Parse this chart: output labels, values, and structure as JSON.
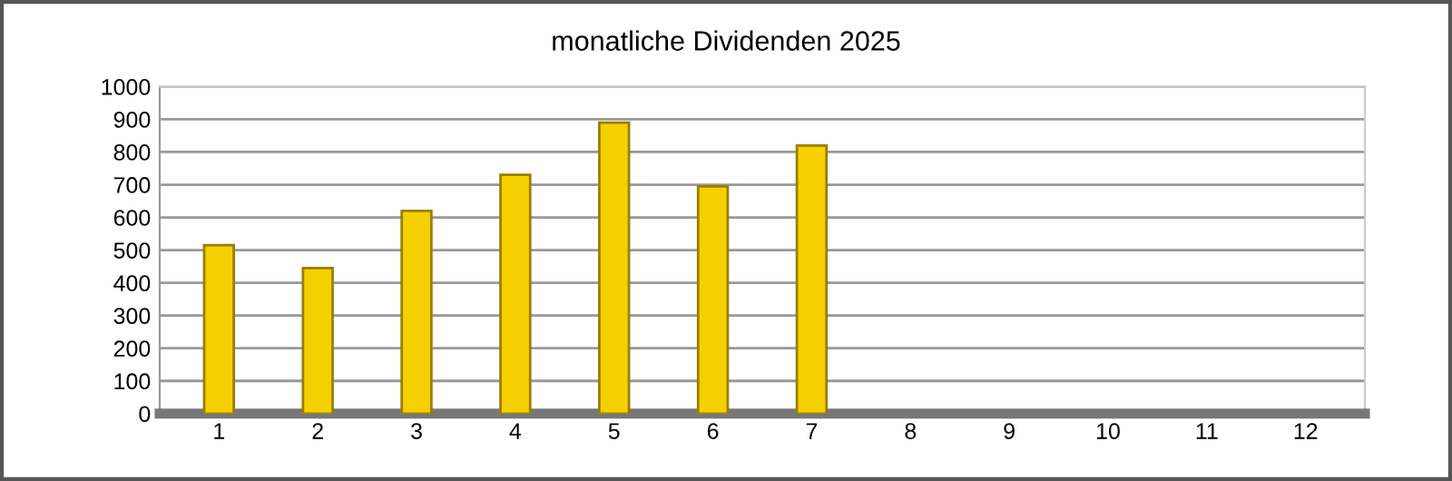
{
  "chart_data": {
    "type": "bar",
    "title": "monatliche Dividenden 2025",
    "categories": [
      "1",
      "2",
      "3",
      "4",
      "5",
      "6",
      "7",
      "8",
      "9",
      "10",
      "11",
      "12"
    ],
    "values": [
      515,
      445,
      620,
      730,
      890,
      695,
      820,
      null,
      null,
      null,
      null,
      null
    ],
    "color": "#f5d000",
    "ylim": [
      0,
      1000
    ],
    "yticks": [
      0,
      100,
      200,
      300,
      400,
      500,
      600,
      700,
      800,
      900,
      1000
    ],
    "grid": "y"
  }
}
